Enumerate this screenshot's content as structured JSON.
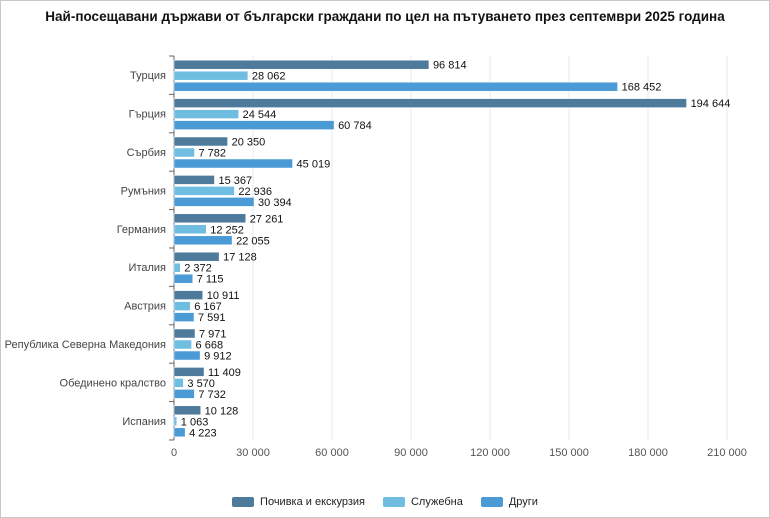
{
  "chart_data": {
    "type": "bar",
    "orientation": "horizontal",
    "title": "Най-посещавани държави от български граждани по цел на пътуването през септември 2025 година",
    "categories": [
      "Турция",
      "Гърция",
      "Сърбия",
      "Румъния",
      "Германия",
      "Италия",
      "Австрия",
      "Република Северна Македония",
      "Обединено кралство",
      "Испания"
    ],
    "series": [
      {
        "name": "Почивка и екскурзия",
        "color": "#4e7a9c",
        "values": [
          96814,
          194644,
          20350,
          15367,
          27261,
          17128,
          10911,
          7971,
          11409,
          10128
        ]
      },
      {
        "name": "Служебна",
        "color": "#6fbde1",
        "values": [
          28062,
          24544,
          7782,
          22936,
          12252,
          2372,
          6167,
          6668,
          3570,
          1063
        ]
      },
      {
        "name": "Други",
        "color": "#4a9ad6",
        "values": [
          168452,
          60784,
          45019,
          30394,
          22055,
          7115,
          7591,
          9912,
          7732,
          4223
        ]
      }
    ],
    "xlim": [
      0,
      210000
    ],
    "xticks": [
      0,
      30000,
      60000,
      90000,
      120000,
      150000,
      180000,
      210000
    ],
    "grid": true,
    "legend_position": "bottom"
  }
}
